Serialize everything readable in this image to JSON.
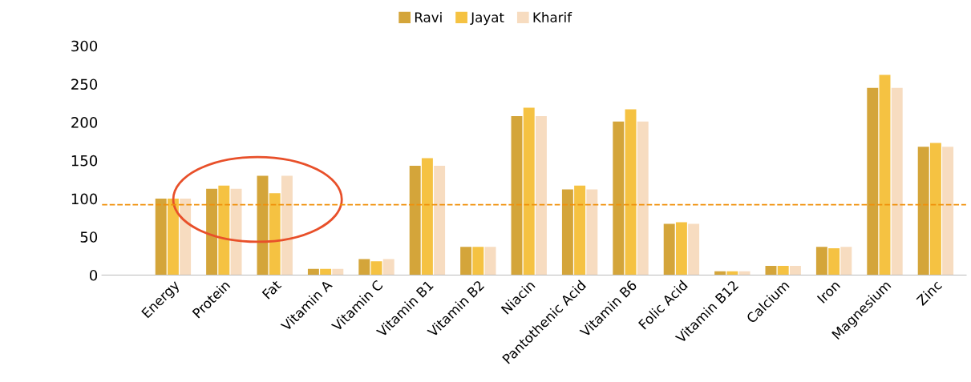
{
  "chart_data": {
    "type": "bar",
    "categories": [
      "Energy",
      "Protein",
      "Fat",
      "Vitamin A",
      "Vitamin C",
      "Vitamin B1",
      "Vitamin B2",
      "Niacin",
      "Pantothenic Acid",
      "Vitamin B6",
      "Folic Acid",
      "Vitamin B12",
      "Calcium",
      "Iron",
      "Magnesium",
      "Zinc"
    ],
    "series": [
      {
        "name": "Ravi",
        "color": "#d4a53a",
        "values": [
          100,
          113,
          130,
          8,
          21,
          143,
          37,
          208,
          112,
          201,
          67,
          5,
          12,
          37,
          245,
          168
        ]
      },
      {
        "name": "Jayat",
        "color": "#f5c242",
        "values": [
          100,
          117,
          107,
          8,
          18,
          153,
          37,
          219,
          117,
          217,
          69,
          5,
          12,
          35,
          262,
          173
        ]
      },
      {
        "name": "Kharif",
        "color": "#f7dcc0",
        "values": [
          100,
          113,
          130,
          8,
          21,
          143,
          37,
          208,
          112,
          201,
          67,
          5,
          12,
          37,
          245,
          168
        ]
      }
    ],
    "ylim": [
      0,
      300
    ],
    "yticks": [
      0,
      50,
      100,
      150,
      200,
      250,
      300
    ],
    "grid": false,
    "legend": "top",
    "ref_lines": [
      {
        "axis": "y",
        "value": 92,
        "color": "#f0900a",
        "line_style": "dashed"
      }
    ]
  }
}
